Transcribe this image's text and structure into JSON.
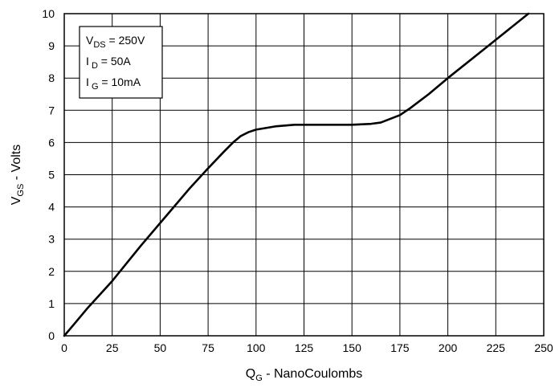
{
  "chart_data": {
    "type": "line",
    "title": "",
    "xlabel": {
      "main": "Q",
      "sub": "G",
      "rest": " - NanoCoulombs"
    },
    "ylabel": {
      "main": "V",
      "sub": "GS",
      "rest": " - Volts"
    },
    "xlim": [
      0,
      250
    ],
    "ylim": [
      0,
      10
    ],
    "xticks": [
      0,
      25,
      50,
      75,
      100,
      125,
      150,
      175,
      200,
      225,
      250
    ],
    "yticks": [
      0,
      1,
      2,
      3,
      4,
      5,
      6,
      7,
      8,
      9,
      10
    ],
    "grid": true,
    "series": [
      {
        "color": "#000000",
        "x": [
          0,
          5,
          12,
          25,
          40,
          55,
          65,
          75,
          83,
          88,
          92,
          96,
          100,
          110,
          120,
          130,
          150,
          160,
          165,
          175,
          180,
          190,
          200,
          220,
          242
        ],
        "y": [
          0,
          0.35,
          0.85,
          1.7,
          2.8,
          3.85,
          4.55,
          5.2,
          5.7,
          6.0,
          6.2,
          6.32,
          6.4,
          6.5,
          6.55,
          6.55,
          6.55,
          6.58,
          6.62,
          6.85,
          7.05,
          7.5,
          8.0,
          8.95,
          10.0
        ]
      }
    ],
    "annotation": {
      "lines": [
        {
          "main": "V",
          "sub": "DS",
          "rest": " = 250V"
        },
        {
          "main": "I",
          "sub": " D",
          "rest": " = 50A"
        },
        {
          "main": "I",
          "sub": " G",
          "rest": " = 10mA"
        }
      ],
      "placement": "top-left"
    }
  }
}
